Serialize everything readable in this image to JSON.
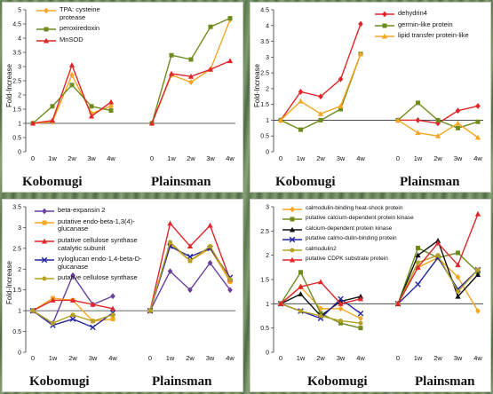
{
  "chart_data": [
    {
      "type": "line",
      "ylabel": "Fold-Increase",
      "ylim": [
        0,
        5
      ],
      "yticks": [
        "0",
        "0.5",
        "1",
        "1.5",
        "2",
        "2.5",
        "3",
        "3.5",
        "4",
        "4.5",
        "5"
      ],
      "groups": [
        {
          "label": "Kobomugi",
          "x": [
            "0",
            "1w",
            "2w",
            "3w",
            "4w"
          ]
        },
        {
          "label": "Plainsman",
          "x": [
            "0",
            "1w",
            "2w",
            "3w",
            "4w"
          ]
        }
      ],
      "series": [
        {
          "name": "TPA: cysteine protease",
          "color": "#f5a623",
          "marker": "diamond",
          "kobomugi": [
            1,
            1.05,
            2.7,
            1.35,
            1.6
          ],
          "plainsman": [
            1,
            2.7,
            2.45,
            2.9,
            4.65
          ]
        },
        {
          "name": "peroxiredoxin",
          "color": "#6e8b1d",
          "marker": "square",
          "kobomugi": [
            1,
            1.6,
            2.35,
            1.6,
            1.45
          ],
          "plainsman": [
            1,
            3.4,
            3.25,
            4.4,
            4.7
          ]
        },
        {
          "name": "MnSOD",
          "color": "#e0262b",
          "marker": "triangle",
          "kobomugi": [
            1,
            1.1,
            3.05,
            1.25,
            1.75
          ],
          "plainsman": [
            1,
            2.75,
            2.65,
            2.9,
            3.2
          ]
        }
      ]
    },
    {
      "type": "line",
      "ylabel": "Fold-Increase",
      "ylim": [
        0,
        4.5
      ],
      "yticks": [
        "0",
        "0.5",
        "1",
        "1.5",
        "2",
        "2.5",
        "3",
        "3.5",
        "4",
        "4.5"
      ],
      "groups": [
        {
          "label": "Kobomugi",
          "x": [
            "0",
            "1w",
            "2w",
            "3w",
            "4w"
          ]
        },
        {
          "label": "Plainsman",
          "x": [
            "0",
            "1w",
            "2w",
            "3w",
            "4w"
          ]
        }
      ],
      "series": [
        {
          "name": "dehydrin4",
          "color": "#e0262b",
          "marker": "diamond",
          "kobomugi": [
            1,
            1.9,
            1.75,
            2.3,
            4.05
          ],
          "plainsman": [
            1,
            1.0,
            0.9,
            1.3,
            1.45
          ]
        },
        {
          "name": "germin-like protein",
          "color": "#6e8b1d",
          "marker": "square",
          "kobomugi": [
            1,
            0.7,
            1.0,
            1.35,
            3.1
          ],
          "plainsman": [
            1,
            1.55,
            1.0,
            0.75,
            0.95
          ]
        },
        {
          "name": "lipid transfer protein-like",
          "color": "#f5a623",
          "marker": "triangle",
          "kobomugi": [
            1,
            1.6,
            1.2,
            1.45,
            3.1
          ],
          "plainsman": [
            1,
            0.6,
            0.5,
            0.9,
            0.45
          ]
        }
      ]
    },
    {
      "type": "line",
      "ylabel": "Fold-Increase",
      "ylim": [
        0,
        3.5
      ],
      "yticks": [
        "0",
        "0.5",
        "1",
        "1.5",
        "2",
        "2.5",
        "3",
        "3.5"
      ],
      "groups": [
        {
          "label": "Kobomugi",
          "x": [
            "0",
            "1w",
            "2w",
            "3w",
            "4w"
          ]
        },
        {
          "label": "Plainsman",
          "x": [
            "0",
            "1w",
            "2w",
            "3w",
            "4w"
          ]
        }
      ],
      "series": [
        {
          "name": "beta-expansin 2",
          "color": "#6a3fa0",
          "marker": "diamond",
          "kobomugi": [
            1,
            0.7,
            1.85,
            1.15,
            1.35
          ],
          "plainsman": [
            1,
            1.95,
            1.5,
            2.15,
            1.5
          ]
        },
        {
          "name": "putative endo-beta-1,3(4)-glucanase",
          "color": "#f5a623",
          "marker": "square",
          "kobomugi": [
            1,
            1.3,
            1.25,
            0.75,
            0.8
          ],
          "plainsman": [
            1,
            2.6,
            2.2,
            2.5,
            1.7
          ]
        },
        {
          "name": "putative cellulose synthase catalytic subunit",
          "color": "#e0262b",
          "marker": "triangle",
          "kobomugi": [
            1,
            1.25,
            1.25,
            1.15,
            1.05
          ],
          "plainsman": [
            1,
            3.1,
            2.55,
            3.05,
            1.75
          ]
        },
        {
          "name": "xyloglucan endo-1,4-beta-D-glucanase",
          "color": "#2525a0",
          "marker": "x",
          "kobomugi": [
            1,
            0.65,
            0.8,
            0.6,
            0.95
          ],
          "plainsman": [
            1,
            2.55,
            2.3,
            2.5,
            1.8
          ]
        },
        {
          "name": "putative cellulose synthase",
          "color": "#b5a021",
          "marker": "circle",
          "kobomugi": [
            1,
            0.7,
            0.9,
            0.75,
            0.9
          ],
          "plainsman": [
            1,
            2.65,
            2.2,
            2.55,
            1.75
          ]
        }
      ]
    },
    {
      "type": "line",
      "ylabel": "",
      "ylim": [
        0,
        3
      ],
      "yticks": [
        "0",
        "0.5",
        "1",
        "1.5",
        "2",
        "2.5",
        "3"
      ],
      "groups": [
        {
          "label": "Kobomugi",
          "x": [
            "0",
            "1w",
            "2w",
            "3w",
            "4w"
          ]
        },
        {
          "label": "Plainsman",
          "x": [
            "0",
            "1w",
            "2w",
            "3w",
            "4w"
          ]
        }
      ],
      "series": [
        {
          "name": "calmodulin-binding heat-shock protein",
          "color": "#f5a623",
          "marker": "diamond",
          "kobomugi": [
            1,
            1.35,
            0.9,
            0.9,
            0.7
          ],
          "plainsman": [
            1,
            1.75,
            1.95,
            1.55,
            0.85
          ]
        },
        {
          "name": "putative calcium-dependent protein kinase",
          "color": "#6e8b1d",
          "marker": "square",
          "kobomugi": [
            1,
            1.65,
            0.8,
            0.6,
            0.5
          ],
          "plainsman": [
            1,
            2.15,
            1.95,
            2.05,
            1.65
          ]
        },
        {
          "name": "calcium-dependent protein kinase",
          "color": "#111111",
          "marker": "triangle",
          "kobomugi": [
            1,
            1.2,
            0.75,
            1.05,
            1.15
          ],
          "plainsman": [
            1,
            2.0,
            2.3,
            1.15,
            1.6
          ]
        },
        {
          "name": "putative calmo-dulin-binding protein",
          "color": "#2525a0",
          "marker": "x",
          "kobomugi": [
            1,
            0.85,
            0.7,
            1.1,
            0.8
          ],
          "plainsman": [
            1,
            1.4,
            1.95,
            1.3,
            1.7
          ]
        },
        {
          "name": "calmodulin2",
          "color": "#b5a021",
          "marker": "circle",
          "kobomugi": [
            1,
            0.85,
            0.75,
            0.65,
            0.6
          ],
          "plainsman": [
            1,
            1.85,
            2.0,
            1.25,
            1.7
          ]
        },
        {
          "name": "putative CDPK substrate protein",
          "color": "#e0262b",
          "marker": "triangle",
          "kobomugi": [
            1,
            1.35,
            1.45,
            1.0,
            1.1
          ],
          "plainsman": [
            1,
            1.75,
            2.25,
            1.8,
            2.85
          ]
        }
      ]
    }
  ]
}
